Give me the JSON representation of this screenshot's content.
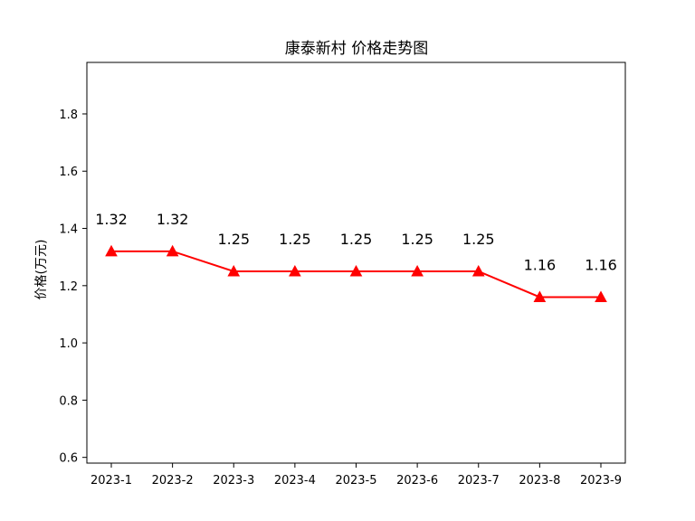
{
  "chart_data": {
    "type": "line",
    "title": "康泰新村 价格走势图",
    "xlabel": "",
    "ylabel": "价格(万元)",
    "categories": [
      "2023-1",
      "2023-2",
      "2023-3",
      "2023-4",
      "2023-5",
      "2023-6",
      "2023-7",
      "2023-8",
      "2023-9"
    ],
    "series": [
      {
        "values": [
          1.32,
          1.32,
          1.25,
          1.25,
          1.25,
          1.25,
          1.25,
          1.16,
          1.16
        ],
        "labels": [
          "1.32",
          "1.32",
          "1.25",
          "1.25",
          "1.25",
          "1.25",
          "1.25",
          "1.16",
          "1.16"
        ],
        "color": "#ff0000",
        "marker": "triangle"
      }
    ],
    "ylim": [
      0.58,
      1.98
    ],
    "yticks": [
      0.6,
      0.8,
      1.0,
      1.2,
      1.4,
      1.6,
      1.8
    ],
    "ytick_labels": [
      "0.6",
      "0.8",
      "1.0",
      "1.2",
      "1.4",
      "1.6",
      "1.8"
    ],
    "grid": false,
    "legend": "none"
  }
}
